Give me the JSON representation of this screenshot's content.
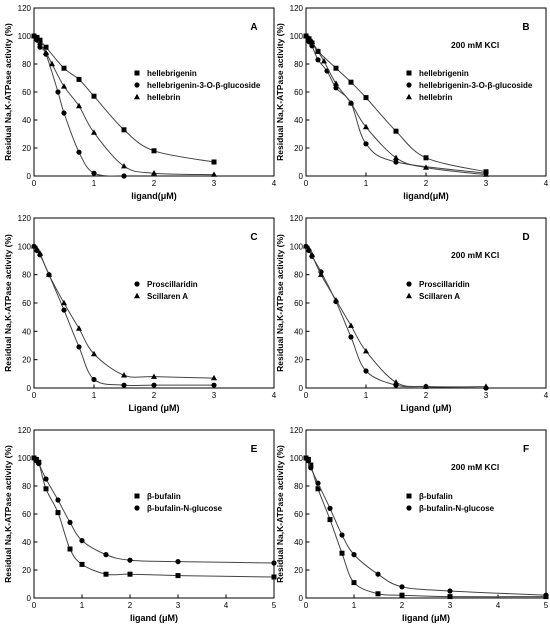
{
  "chart_data": [
    {
      "type": "scatter",
      "panel": "A",
      "note": "",
      "xlabel": "ligand(μM)",
      "ylabel": "Residual Na,K-ATPase activity (%)",
      "xlim": [
        0,
        4
      ],
      "ylim": [
        0,
        120
      ],
      "xticks": [
        0,
        1,
        2,
        3,
        4
      ],
      "yticks": [
        0,
        20,
        40,
        60,
        80,
        100,
        120
      ],
      "legend_position": "right-middle",
      "series": [
        {
          "name": "hellebrigenin",
          "marker": "square",
          "x": [
            0,
            0.05,
            0.1,
            0.2,
            0.5,
            0.75,
            1.0,
            1.5,
            2.0,
            3.0
          ],
          "y": [
            100,
            99,
            97,
            92,
            77,
            69,
            57,
            33,
            18,
            10
          ]
        },
        {
          "name": "hellebrigenin-3-O-β-glucoside",
          "marker": "circle",
          "x": [
            0,
            0.05,
            0.1,
            0.2,
            0.4,
            0.5,
            0.75,
            1.0,
            1.5
          ],
          "y": [
            100,
            97,
            92,
            87,
            60,
            45,
            17,
            2,
            0
          ]
        },
        {
          "name": "hellebrin",
          "marker": "triangle",
          "x": [
            0,
            0.05,
            0.1,
            0.2,
            0.3,
            0.5,
            0.75,
            1.0,
            1.5,
            2.0,
            3.0
          ],
          "y": [
            100,
            98,
            95,
            88,
            80,
            64,
            50,
            31,
            7,
            2,
            1
          ]
        }
      ]
    },
    {
      "type": "scatter",
      "panel": "B",
      "note": "200 mM KCl",
      "xlabel": "ligand(μM)",
      "ylabel": "Residual Na,K-ATPase activity (%)",
      "xlim": [
        0,
        4
      ],
      "ylim": [
        0,
        120
      ],
      "xticks": [
        0,
        1,
        2,
        3,
        4
      ],
      "yticks": [
        0,
        20,
        40,
        60,
        80,
        100,
        120
      ],
      "legend_position": "right-middle",
      "series": [
        {
          "name": "hellebrigenin",
          "marker": "square",
          "x": [
            0,
            0.05,
            0.1,
            0.2,
            0.5,
            0.75,
            1.0,
            1.5,
            2.0,
            3.0
          ],
          "y": [
            100,
            98,
            95,
            89,
            77,
            67,
            56,
            32,
            13,
            3
          ]
        },
        {
          "name": "hellebrigenin-3-O-β-glucoside",
          "marker": "circle",
          "x": [
            0,
            0.05,
            0.1,
            0.2,
            0.35,
            0.5,
            0.75,
            1.0,
            1.5,
            3.0
          ],
          "y": [
            100,
            96,
            93,
            83,
            75,
            63,
            52,
            23,
            10,
            2
          ]
        },
        {
          "name": "hellebrin",
          "marker": "triangle",
          "x": [
            0,
            0.05,
            0.1,
            0.2,
            0.3,
            0.5,
            0.75,
            1.0,
            1.5,
            2.0,
            3.0
          ],
          "y": [
            100,
            98,
            96,
            89,
            82,
            66,
            52,
            35,
            13,
            6,
            1
          ]
        }
      ]
    },
    {
      "type": "scatter",
      "panel": "C",
      "note": "",
      "xlabel": "Ligand (μM)",
      "ylabel": "Residual Na,K-ATPase activity (%)",
      "xlim": [
        0,
        4
      ],
      "ylim": [
        0,
        120
      ],
      "xticks": [
        0,
        1,
        2,
        3,
        4
      ],
      "yticks": [
        0,
        20,
        40,
        60,
        80,
        100,
        120
      ],
      "legend_position": "right-middle",
      "series": [
        {
          "name": "Proscillaridin",
          "marker": "circle",
          "x": [
            0,
            0.05,
            0.1,
            0.25,
            0.5,
            0.75,
            1.0,
            1.5,
            2.0,
            3.0
          ],
          "y": [
            100,
            97,
            94,
            80,
            55,
            29,
            6,
            2,
            2,
            2
          ]
        },
        {
          "name": "Scillaren A",
          "marker": "triangle",
          "x": [
            0,
            0.05,
            0.1,
            0.25,
            0.5,
            0.75,
            1.0,
            1.5,
            2.0,
            3.0
          ],
          "y": [
            100,
            98,
            95,
            80,
            60,
            42,
            24,
            9,
            8,
            7
          ]
        }
      ]
    },
    {
      "type": "scatter",
      "panel": "D",
      "note": "200 mM KCl",
      "xlabel": "Ligand (μM)",
      "ylabel": "Residual Na,K-ATPase activity (%)",
      "xlim": [
        0,
        4
      ],
      "ylim": [
        0,
        120
      ],
      "xticks": [
        0,
        1,
        2,
        3,
        4
      ],
      "yticks": [
        0,
        20,
        40,
        60,
        80,
        100,
        120
      ],
      "legend_position": "right-middle",
      "series": [
        {
          "name": "Proscillaridin",
          "marker": "circle",
          "x": [
            0,
            0.05,
            0.1,
            0.25,
            0.5,
            0.75,
            1.0,
            1.5,
            2.0,
            3.0
          ],
          "y": [
            100,
            97,
            93,
            82,
            61,
            36,
            12,
            2,
            1,
            0
          ]
        },
        {
          "name": "Scillaren A",
          "marker": "triangle",
          "x": [
            0,
            0.05,
            0.1,
            0.25,
            0.5,
            0.75,
            1.0,
            1.5,
            2.0,
            3.0
          ],
          "y": [
            100,
            98,
            94,
            80,
            62,
            44,
            26,
            4,
            1,
            1
          ]
        }
      ]
    },
    {
      "type": "scatter",
      "panel": "E",
      "note": "",
      "xlabel": "ligand (μM)",
      "ylabel": "Residual Na,K-ATPase activity (%)",
      "xlim": [
        0,
        5
      ],
      "ylim": [
        0,
        120
      ],
      "xticks": [
        0,
        1,
        2,
        3,
        4,
        5
      ],
      "yticks": [
        0,
        20,
        40,
        60,
        80,
        100,
        120
      ],
      "legend_position": "right-middle",
      "series": [
        {
          "name": "β-bufalin",
          "marker": "square",
          "x": [
            0,
            0.05,
            0.1,
            0.25,
            0.5,
            0.75,
            1.0,
            1.5,
            2.0,
            3.0,
            5.0
          ],
          "y": [
            100,
            99,
            97,
            78,
            61,
            35,
            24,
            17,
            17,
            16,
            15
          ]
        },
        {
          "name": "β-bufalin-N-glucose",
          "marker": "circle",
          "x": [
            0,
            0.05,
            0.1,
            0.25,
            0.5,
            0.75,
            1.0,
            1.5,
            2.0,
            3.0,
            5.0
          ],
          "y": [
            100,
            98,
            96,
            85,
            70,
            54,
            41,
            31,
            27,
            26,
            25
          ]
        }
      ]
    },
    {
      "type": "scatter",
      "panel": "F",
      "note": "200 mM KCl",
      "xlabel": "ligand (μM)",
      "ylabel": "Residual Na,K-ATPase activity (%)",
      "xlim": [
        0,
        5
      ],
      "ylim": [
        0,
        120
      ],
      "xticks": [
        0,
        1,
        2,
        3,
        4,
        5
      ],
      "yticks": [
        0,
        20,
        40,
        60,
        80,
        100,
        120
      ],
      "legend_position": "right-middle",
      "series": [
        {
          "name": "β-bufalin",
          "marker": "square",
          "x": [
            0,
            0.05,
            0.1,
            0.25,
            0.5,
            0.75,
            1.0,
            1.5,
            2.0,
            3.0,
            5.0
          ],
          "y": [
            100,
            99,
            95,
            78,
            56,
            32,
            11,
            3,
            2,
            1,
            1
          ]
        },
        {
          "name": "β-bufalin-N-glucose",
          "marker": "circle",
          "x": [
            0,
            0.05,
            0.1,
            0.25,
            0.5,
            0.75,
            1.0,
            1.5,
            2.0,
            3.0,
            5.0
          ],
          "y": [
            100,
            98,
            93,
            82,
            64,
            45,
            31,
            17,
            8,
            5,
            2
          ]
        }
      ]
    }
  ]
}
